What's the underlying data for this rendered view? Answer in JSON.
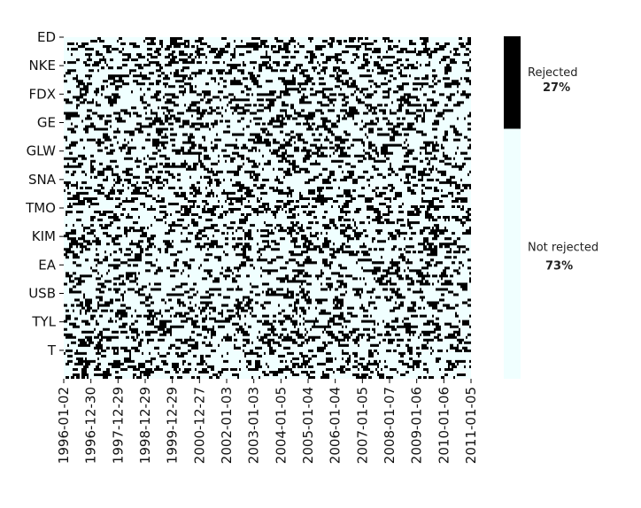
{
  "chart_data": {
    "type": "heatmap",
    "title": "",
    "xlabel": "",
    "ylabel": "",
    "y_tick_labels": [
      "ED",
      "NKE",
      "FDX",
      "GE",
      "GLW",
      "SNA",
      "TMO",
      "KIM",
      "EA",
      "USB",
      "TYL",
      "T"
    ],
    "x_tick_labels": [
      "1996-01-02",
      "1996-12-30",
      "1997-12-29",
      "1998-12-29",
      "1999-12-29",
      "2000-12-27",
      "2002-01-03",
      "2003-01-03",
      "2004-01-05",
      "2005-01-04",
      "2006-01-04",
      "2007-01-05",
      "2008-01-07",
      "2009-01-06",
      "2010-01-06",
      "2011-01-05"
    ],
    "categories": [
      {
        "label": "Rejected",
        "share": 0.27,
        "percent_label": "27%",
        "color": "#000000"
      },
      {
        "label": "Not rejected",
        "share": 0.73,
        "percent_label": "73%",
        "color": "#f0ffff"
      }
    ],
    "grid": false,
    "legend_position": "right"
  }
}
